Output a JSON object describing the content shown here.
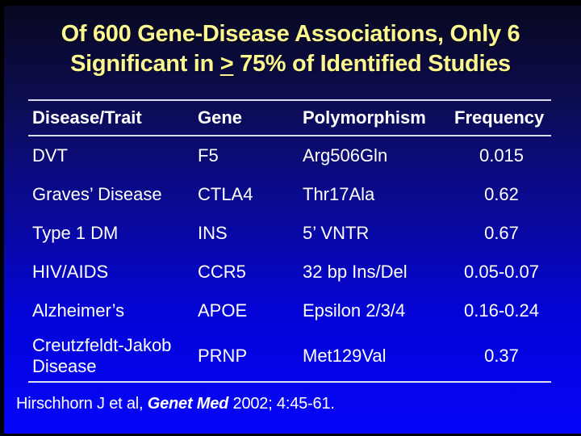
{
  "title": {
    "line1": "Of 600 Gene-Disease Associations, Only 6",
    "line2_prefix": "Significant in ",
    "line2_symbol": ">",
    "line2_suffix": " 75% of Identified Studies"
  },
  "table": {
    "headers": [
      "Disease/Trait",
      "Gene",
      "Polymorphism",
      "Frequency"
    ],
    "rows": [
      {
        "disease": "DVT",
        "gene": "F5",
        "polymorphism": "Arg506Gln",
        "frequency": "0.015"
      },
      {
        "disease": "Graves’ Disease",
        "gene": "CTLA4",
        "polymorphism": "Thr17Ala",
        "frequency": "0.62"
      },
      {
        "disease": "Type 1 DM",
        "gene": "INS",
        "polymorphism": "5’ VNTR",
        "frequency": "0.67"
      },
      {
        "disease": "HIV/AIDS",
        "gene": "CCR5",
        "polymorphism": "32 bp Ins/Del",
        "frequency": "0.05-0.07"
      },
      {
        "disease": "Alzheimer’s",
        "gene": "APOE",
        "polymorphism": "Epsilon 2/3/4",
        "frequency": "0.16-0.24"
      },
      {
        "disease": "Creutzfeldt-Jakob Disease",
        "gene": "PRNP",
        "polymorphism": "Met129Val",
        "frequency": "0.37"
      }
    ]
  },
  "citation": {
    "prefix": "Hirschhorn J et al, ",
    "journal": "Genet Med",
    "suffix": " 2002; 4:45-61."
  },
  "colors": {
    "title_text": "#FCF88F",
    "body_text": "#FFFFFF",
    "rule": "#DCDCF0",
    "background_top": "#08081E",
    "background_bottom": "#0505FA",
    "border": "#000000"
  }
}
